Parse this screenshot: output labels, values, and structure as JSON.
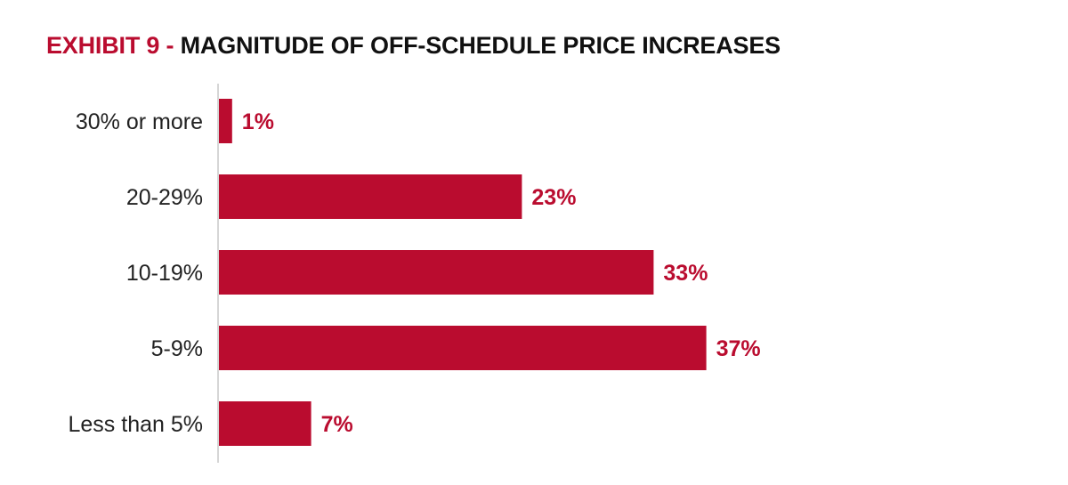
{
  "header": {
    "prefix": "EXHIBIT 9 -",
    "title": "MAGNITUDE OF OFF-SCHEDULE PRICE INCREASES"
  },
  "colors": {
    "accent": "#ba0c2f",
    "axis": "#c8c8c8",
    "text": "#222222"
  },
  "chart_data": {
    "type": "bar",
    "orientation": "horizontal",
    "title": "EXHIBIT 9 - MAGNITUDE OF OFF-SCHEDULE PRICE INCREASES",
    "categories": [
      "30% or more",
      "20-29%",
      "10-19%",
      "5-9%",
      "Less than 5%"
    ],
    "values": [
      1,
      23,
      33,
      37,
      7
    ],
    "value_labels": [
      "1%",
      "23%",
      "33%",
      "37%",
      "7%"
    ],
    "unit": "%",
    "xlim": [
      0,
      40
    ],
    "grid": false,
    "legend": "none",
    "bar_color": "#ba0c2f"
  }
}
